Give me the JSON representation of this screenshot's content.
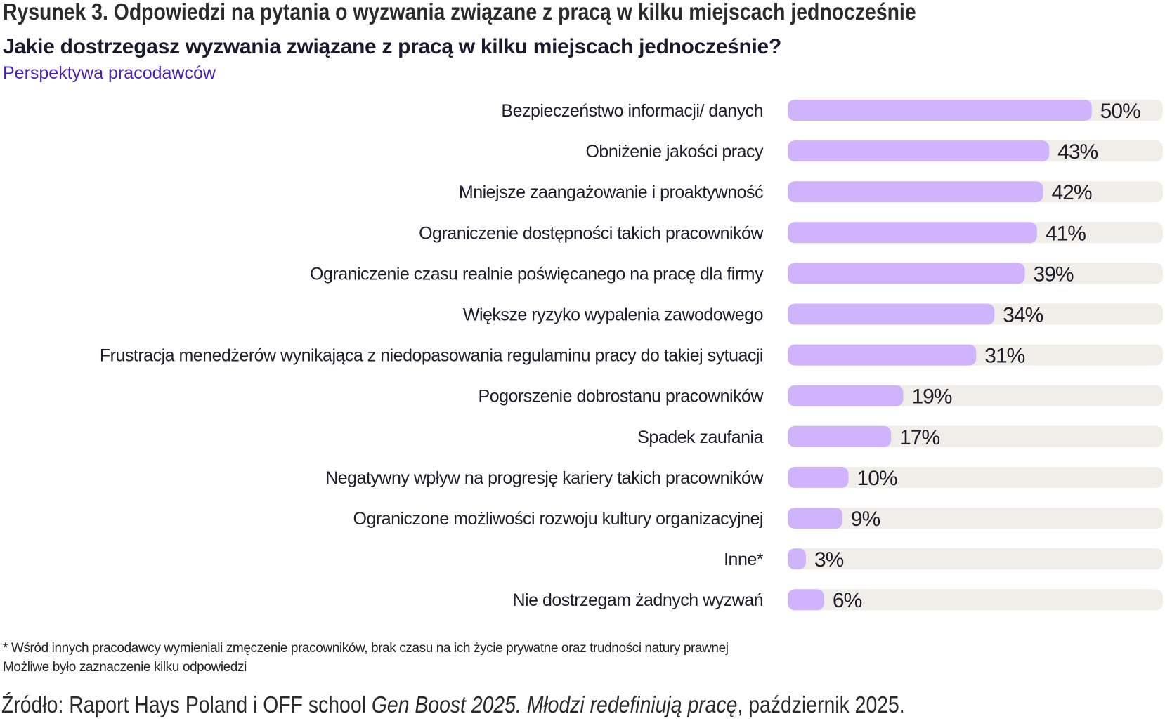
{
  "figure_title": "Rysunek 3. Odpowiedzi na pytania o wyzwania związane z pracą w kilku miejscach jednocześnie",
  "chart_data": {
    "type": "bar",
    "orientation": "horizontal",
    "title": "Jakie dostrzegasz wyzwania związane z pracą w kilku miejscach jednocześnie?",
    "subtitle": "Perspektywa pracodawców",
    "categories": [
      "Bezpieczeństwo informacji/ danych",
      "Obniżenie jakości pracy",
      "Mniejsze zaangażowanie i proaktywność",
      "Ograniczenie dostępności takich pracowników",
      "Ograniczenie czasu realnie poświęcanego na pracę dla firmy",
      "Większe ryzyko wypalenia zawodowego",
      "Frustracja menedżerów wynikająca z niedopasowania regulaminu pracy do takiej sytuacji",
      "Pogorszenie dobrostanu pracowników",
      "Spadek zaufania",
      "Negatywny wpływ na progresję kariery takich pracowników",
      "Ograniczone możliwości rozwoju kultury organizacyjnej",
      "Inne*",
      "Nie dostrzegam żadnych wyzwań"
    ],
    "values": [
      50,
      43,
      42,
      41,
      39,
      34,
      31,
      19,
      17,
      10,
      9,
      3,
      6
    ],
    "value_labels": [
      "50%",
      "43%",
      "42%",
      "41%",
      "39%",
      "34%",
      "31%",
      "19%",
      "17%",
      "10%",
      "9%",
      "3%",
      "6%"
    ],
    "unit": "%",
    "xlim": [
      0,
      61.7
    ],
    "grid": false,
    "colors": {
      "bar": "#d0b4fb",
      "track": "#f1ede8",
      "subtitle": "#4b1fb0"
    }
  },
  "footnotes": [
    "* Wśród innych pracodawcy wymieniali zmęczenie pracowników, brak czasu na ich życie prywatne oraz trudności natury prawnej",
    "Możliwe było zaznaczenie kilku odpowiedzi"
  ],
  "source": {
    "prefix": "Źródło: Raport Hays Poland i OFF school ",
    "italic": "Gen Boost 2025. Młodzi redefiniują pracę",
    "suffix": ", październik 2025."
  }
}
